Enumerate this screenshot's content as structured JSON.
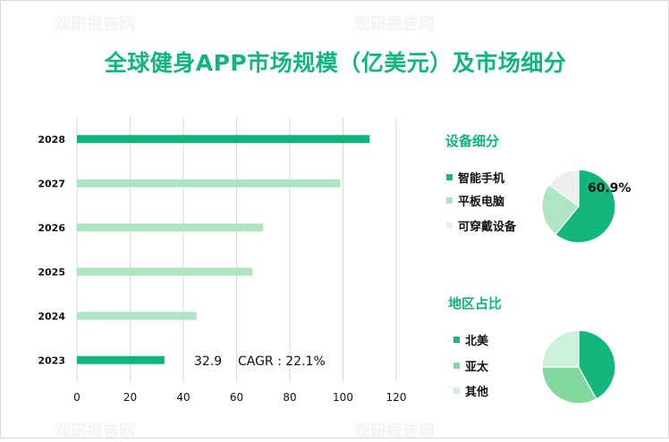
{
  "title": "全球健身APP市场规模（亿美元）及市场细分",
  "bar_chart_note": "32.9    CAGR : 22.1%",
  "chart_data": [
    {
      "type": "bar",
      "orientation": "horizontal",
      "categories": [
        "2028",
        "2027",
        "2026",
        "2025",
        "2024",
        "2023"
      ],
      "values": [
        110,
        99,
        70,
        66,
        45,
        32.9
      ],
      "colors": [
        "#0fb57a",
        "#aee6c4",
        "#aee6c4",
        "#aee6c4",
        "#aee6c4",
        "#0fb57a"
      ],
      "xlim": [
        0,
        120
      ],
      "xticks": [
        0,
        20,
        40,
        60,
        80,
        100,
        120
      ],
      "grid": true,
      "annotation": "32.9    CAGR : 22.1%"
    },
    {
      "type": "pie",
      "title": "设备细分",
      "labels": [
        "智能手机",
        "平板电脑",
        "可穿戴设备"
      ],
      "values": [
        60.9,
        24.1,
        15.0
      ],
      "colors": [
        "#13b77c",
        "#aee6c4",
        "#eeeeee"
      ],
      "data_label": "60.9%"
    },
    {
      "type": "pie",
      "title": "地区占比",
      "labels": [
        "北美",
        "亚太",
        "其他"
      ],
      "values": [
        42,
        33,
        25
      ],
      "colors": [
        "#13b77c",
        "#82d9a0",
        "#cdf0db"
      ]
    }
  ],
  "watermark": "观研报告网"
}
